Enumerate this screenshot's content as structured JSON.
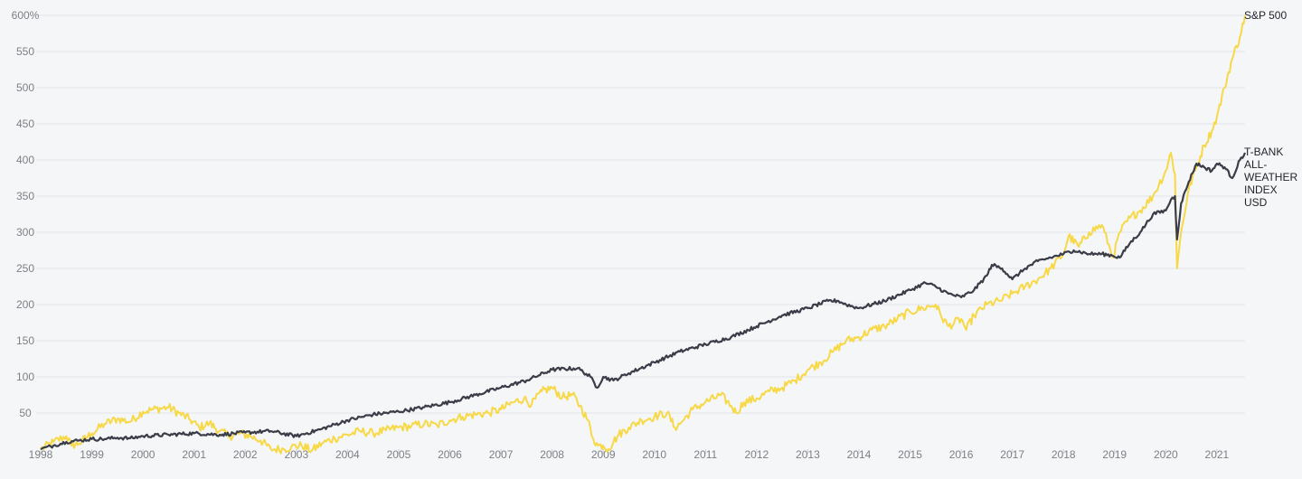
{
  "chart_data": {
    "type": "line",
    "title": "",
    "xlabel": "",
    "ylabel": "",
    "x_range": [
      1998.0,
      2021.55
    ],
    "ylim": [
      0,
      600
    ],
    "y_ticks": [
      "50",
      "100",
      "150",
      "200",
      "250",
      "300",
      "350",
      "400",
      "450",
      "500",
      "550",
      "600%"
    ],
    "y_tick_values": [
      50,
      100,
      150,
      200,
      250,
      300,
      350,
      400,
      450,
      500,
      550,
      600
    ],
    "x_ticks": [
      "1998",
      "1999",
      "2000",
      "2001",
      "2002",
      "2003",
      "2004",
      "2005",
      "2006",
      "2007",
      "2008",
      "2009",
      "2010",
      "2011",
      "2012",
      "2013",
      "2014",
      "2015",
      "2016",
      "2017",
      "2018",
      "2019",
      "2020",
      "2021"
    ],
    "x_tick_values": [
      1998,
      1999,
      2000,
      2001,
      2002,
      2003,
      2004,
      2005,
      2006,
      2007,
      2008,
      2009,
      2010,
      2011,
      2012,
      2013,
      2014,
      2015,
      2016,
      2017,
      2018,
      2019,
      2020,
      2021
    ],
    "grid": true,
    "series": [
      {
        "name": "S&P 500",
        "color": "#f7d948",
        "x": [
          1998.0,
          1998.25,
          1998.5,
          1998.6,
          1998.75,
          1999.0,
          1999.25,
          1999.5,
          1999.75,
          2000.0,
          2000.2,
          2000.5,
          2000.7,
          2000.9,
          2001.1,
          2001.3,
          2001.5,
          2001.7,
          2001.9,
          2002.1,
          2002.3,
          2002.5,
          2002.75,
          2002.9,
          2003.1,
          2003.3,
          2003.5,
          2003.75,
          2004.0,
          2004.25,
          2004.5,
          2004.75,
          2005.0,
          2005.25,
          2005.5,
          2005.75,
          2006.0,
          2006.25,
          2006.5,
          2006.75,
          2007.0,
          2007.25,
          2007.45,
          2007.6,
          2007.8,
          2008.0,
          2008.2,
          2008.4,
          2008.55,
          2008.7,
          2008.8,
          2008.9,
          2009.0,
          2009.1,
          2009.2,
          2009.3,
          2009.5,
          2009.75,
          2010.0,
          2010.25,
          2010.4,
          2010.5,
          2010.75,
          2011.0,
          2011.3,
          2011.5,
          2011.6,
          2011.75,
          2012.0,
          2012.25,
          2012.5,
          2012.75,
          2013.0,
          2013.25,
          2013.5,
          2013.75,
          2014.0,
          2014.25,
          2014.5,
          2014.75,
          2015.0,
          2015.25,
          2015.5,
          2015.6,
          2015.75,
          2016.0,
          2016.1,
          2016.25,
          2016.5,
          2016.75,
          2017.0,
          2017.25,
          2017.5,
          2017.75,
          2018.0,
          2018.1,
          2018.3,
          2018.5,
          2018.75,
          2018.97,
          2019.1,
          2019.3,
          2019.5,
          2019.75,
          2020.0,
          2020.1,
          2020.18,
          2020.22,
          2020.3,
          2020.45,
          2020.6,
          2020.75,
          2020.9,
          2021.0,
          2021.15,
          2021.3,
          2021.45,
          2021.55
        ],
        "values": [
          0,
          10,
          18,
          5,
          8,
          22,
          35,
          42,
          38,
          52,
          55,
          58,
          50,
          42,
          30,
          36,
          25,
          18,
          22,
          18,
          12,
          0,
          0,
          3,
          5,
          -2,
          8,
          15,
          20,
          25,
          22,
          26,
          30,
          32,
          35,
          33,
          40,
          45,
          48,
          50,
          55,
          65,
          70,
          62,
          80,
          85,
          72,
          75,
          60,
          40,
          15,
          5,
          5,
          0,
          10,
          20,
          30,
          40,
          45,
          50,
          30,
          35,
          55,
          65,
          75,
          60,
          50,
          65,
          70,
          80,
          85,
          95,
          110,
          120,
          135,
          150,
          155,
          165,
          170,
          180,
          190,
          195,
          200,
          185,
          170,
          180,
          165,
          185,
          200,
          205,
          215,
          225,
          235,
          250,
          270,
          295,
          280,
          300,
          310,
          265,
          300,
          320,
          330,
          350,
          385,
          410,
          380,
          250,
          300,
          360,
          390,
          420,
          440,
          460,
          500,
          540,
          570,
          600
        ]
      },
      {
        "name": "T-BANK ALL-WEATHER INDEX USD",
        "name_lines": [
          "T-BANK",
          "ALL-",
          "WEATHER",
          "INDEX",
          "USD"
        ],
        "color": "#3a3d47",
        "x": [
          1998.0,
          1998.25,
          1998.5,
          1998.75,
          1999.0,
          1999.25,
          1999.5,
          1999.75,
          2000.0,
          2000.5,
          2001.0,
          2001.5,
          2002.0,
          2002.5,
          2003.0,
          2003.5,
          2004.0,
          2004.5,
          2005.0,
          2005.5,
          2006.0,
          2006.5,
          2007.0,
          2007.5,
          2008.0,
          2008.5,
          2008.75,
          2008.88,
          2009.0,
          2009.2,
          2009.5,
          2010.0,
          2010.5,
          2011.0,
          2011.5,
          2012.0,
          2012.5,
          2013.0,
          2013.4,
          2013.6,
          2013.75,
          2014.0,
          2014.5,
          2015.0,
          2015.3,
          2015.5,
          2015.75,
          2016.0,
          2016.25,
          2016.5,
          2016.6,
          2016.8,
          2017.0,
          2017.25,
          2017.5,
          2017.75,
          2018.0,
          2018.2,
          2018.5,
          2018.75,
          2018.95,
          2019.1,
          2019.3,
          2019.5,
          2019.75,
          2020.0,
          2020.1,
          2020.18,
          2020.22,
          2020.3,
          2020.45,
          2020.6,
          2020.75,
          2020.9,
          2021.0,
          2021.15,
          2021.3,
          2021.45,
          2021.55
        ],
        "values": [
          0,
          5,
          10,
          12,
          14,
          14,
          16,
          15,
          18,
          20,
          22,
          20,
          23,
          25,
          18,
          28,
          40,
          48,
          52,
          58,
          65,
          75,
          85,
          95,
          110,
          112,
          100,
          85,
          100,
          95,
          105,
          120,
          135,
          145,
          155,
          170,
          185,
          195,
          205,
          205,
          200,
          195,
          205,
          220,
          230,
          225,
          215,
          210,
          220,
          240,
          255,
          250,
          235,
          250,
          260,
          265,
          270,
          275,
          270,
          270,
          268,
          265,
          285,
          300,
          325,
          330,
          345,
          350,
          290,
          340,
          370,
          395,
          390,
          385,
          395,
          390,
          375,
          400,
          410
        ]
      }
    ]
  }
}
